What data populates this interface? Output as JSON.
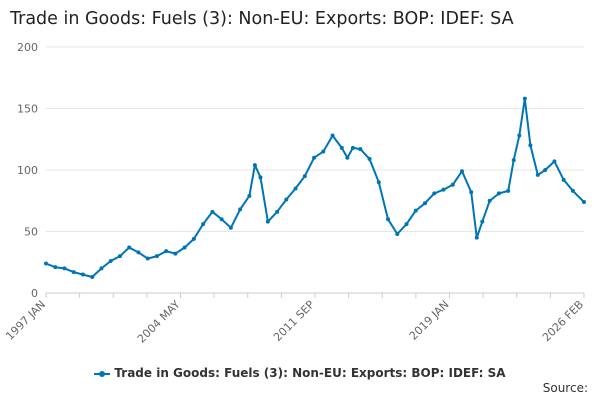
{
  "chart_data": {
    "type": "line",
    "title": "Trade in Goods: Fuels (3): Non-EU: Exports: BOP: IDEF: SA",
    "xlabel": "",
    "ylabel": "",
    "ylim": [
      0,
      200
    ],
    "y_ticks": [
      "0",
      "50",
      "100",
      "150",
      "200"
    ],
    "x_ticks": [
      "1997 JAN",
      "2004 MAY",
      "2011 SEP",
      "2019 JAN",
      "2026 FEB"
    ],
    "grid": true,
    "legend_placement": "bottom",
    "color": "#0075b5",
    "series": [
      {
        "name": "Trade in Goods: Fuels (3): Non-EU: Exports: BOP: IDEF: SA",
        "x": [
          1997.0,
          1997.5,
          1998.0,
          1998.5,
          1999.0,
          1999.5,
          2000.0,
          2000.5,
          2001.0,
          2001.5,
          2002.0,
          2002.5,
          2003.0,
          2003.5,
          2004.0,
          2004.5,
          2005.0,
          2005.5,
          2006.0,
          2006.5,
          2007.0,
          2007.5,
          2008.0,
          2008.3,
          2008.6,
          2009.0,
          2009.5,
          2010.0,
          2010.5,
          2011.0,
          2011.5,
          2012.0,
          2012.5,
          2013.0,
          2013.3,
          2013.6,
          2014.0,
          2014.5,
          2015.0,
          2015.5,
          2016.0,
          2016.5,
          2017.0,
          2017.5,
          2018.0,
          2018.5,
          2019.0,
          2019.5,
          2020.0,
          2020.3,
          2020.6,
          2021.0,
          2021.5,
          2022.0,
          2022.3,
          2022.6,
          2022.9,
          2023.2,
          2023.6,
          2024.0,
          2024.5,
          2025.0,
          2025.5,
          2026.1
        ],
        "values": [
          24,
          21,
          20,
          17,
          15,
          13,
          20,
          26,
          30,
          37,
          33,
          28,
          30,
          34,
          32,
          37,
          44,
          56,
          66,
          60,
          53,
          68,
          79,
          104,
          94,
          58,
          66,
          76,
          85,
          95,
          110,
          115,
          128,
          118,
          110,
          118,
          117,
          109,
          90,
          60,
          48,
          56,
          67,
          73,
          81,
          84,
          88,
          99,
          82,
          45,
          58,
          75,
          81,
          83,
          108,
          128,
          158,
          120,
          96,
          100,
          107,
          92,
          83,
          74
        ]
      }
    ],
    "source_label": "Source:"
  }
}
